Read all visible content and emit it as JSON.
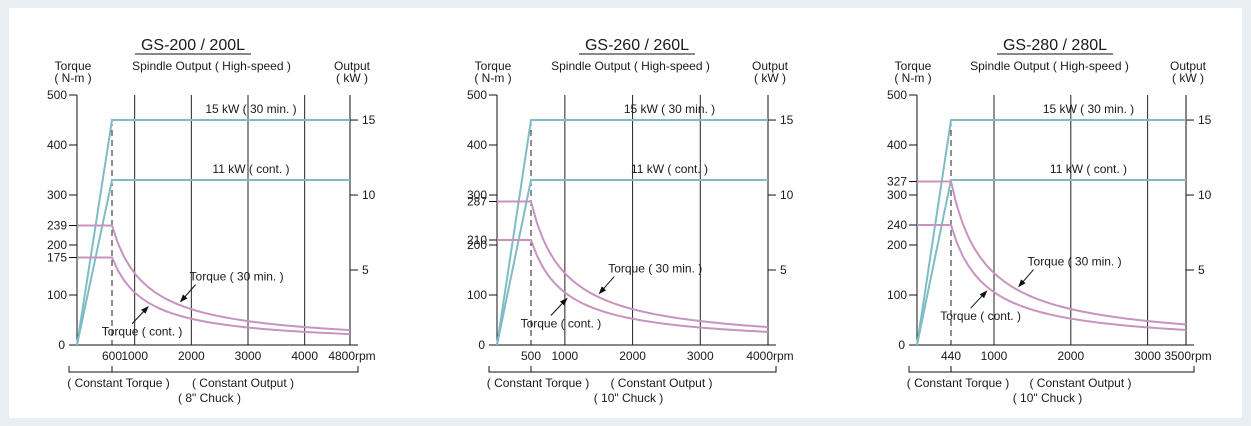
{
  "chart_data": [
    {
      "type": "line",
      "title": "GS-200 / 200L",
      "subtitle": "Spindle Output ( High-speed )",
      "left_axis": {
        "title_line1": "Torque",
        "title_line2": "( N-m )",
        "min": 0,
        "max": 500,
        "ticks": [
          0,
          100,
          200,
          300,
          400,
          500
        ]
      },
      "right_axis": {
        "title_line1": "Output",
        "title_line2": "( kW )",
        "min": 0,
        "max": 16.67,
        "ticks": [
          5,
          10,
          15
        ]
      },
      "x_axis": {
        "min": 0,
        "max": 4800,
        "ticks": [
          600,
          1000,
          2000,
          3000,
          4000
        ],
        "end_label": "4800rpm",
        "unit": "rpm"
      },
      "grid_x": [
        600,
        1000,
        2000,
        3000,
        4000,
        4800
      ],
      "base_speed": 600,
      "max_speed": 4800,
      "power_series": [
        {
          "label": "15 kW ( 30 min. )",
          "kw": 15
        },
        {
          "label": "11 kW ( cont. )",
          "kw": 11
        }
      ],
      "torque_series": [
        {
          "label": "Torque ( 30 min. )",
          "const_torque": 239
        },
        {
          "label": "Torque ( cont. )",
          "const_torque": 175
        }
      ],
      "torque_marks": [
        239,
        175
      ],
      "bracket_left": "( Constant Torque )",
      "bracket_right": "( Constant Output )",
      "chuck": "( 8\" Chuck )",
      "colors": {
        "power": "#7fbcc6",
        "torque": "#c893bf",
        "grid": "#222222"
      }
    },
    {
      "type": "line",
      "title": "GS-260 / 260L",
      "subtitle": "Spindle Output ( High-speed )",
      "left_axis": {
        "title_line1": "Torque",
        "title_line2": "( N-m )",
        "min": 0,
        "max": 500,
        "ticks": [
          0,
          100,
          200,
          300,
          400,
          500
        ]
      },
      "right_axis": {
        "title_line1": "Output",
        "title_line2": "( kW )",
        "min": 0,
        "max": 16.67,
        "ticks": [
          5,
          10,
          15
        ]
      },
      "x_axis": {
        "min": 0,
        "max": 4000,
        "ticks": [
          500,
          1000,
          2000,
          3000
        ],
        "end_label": "4000rpm",
        "unit": "rpm"
      },
      "grid_x": [
        500,
        1000,
        2000,
        3000,
        4000
      ],
      "base_speed": 500,
      "max_speed": 4000,
      "power_series": [
        {
          "label": "15 kW ( 30 min. )",
          "kw": 15
        },
        {
          "label": "11 kW ( cont. )",
          "kw": 11
        }
      ],
      "torque_series": [
        {
          "label": "Torque ( 30 min. )",
          "const_torque": 287
        },
        {
          "label": "Torque ( cont. )",
          "const_torque": 210
        }
      ],
      "torque_marks": [
        287,
        210
      ],
      "bracket_left": "( Constant Torque )",
      "bracket_right": "( Constant Output )",
      "chuck": "( 10\" Chuck )",
      "colors": {
        "power": "#7fbcc6",
        "torque": "#c893bf",
        "grid": "#222222"
      }
    },
    {
      "type": "line",
      "title": "GS-280 / 280L",
      "subtitle": "Spindle Output ( High-speed )",
      "left_axis": {
        "title_line1": "Torque",
        "title_line2": "( N-m )",
        "min": 0,
        "max": 500,
        "ticks": [
          0,
          100,
          200,
          300,
          400,
          500
        ]
      },
      "right_axis": {
        "title_line1": "Output",
        "title_line2": "( kW )",
        "min": 0,
        "max": 16.67,
        "ticks": [
          5,
          10,
          15
        ]
      },
      "x_axis": {
        "min": 0,
        "max": 3500,
        "ticks": [
          440,
          1000,
          2000,
          3000
        ],
        "end_label": "3500rpm",
        "unit": "rpm"
      },
      "grid_x": [
        440,
        1000,
        2000,
        3000,
        3500
      ],
      "base_speed": 440,
      "max_speed": 3500,
      "power_series": [
        {
          "label": "15 kW ( 30 min. )",
          "kw": 15
        },
        {
          "label": "11 kW ( cont. )",
          "kw": 11
        }
      ],
      "torque_series": [
        {
          "label": "Torque ( 30 min. )",
          "const_torque": 327
        },
        {
          "label": "Torque ( cont. )",
          "const_torque": 240
        }
      ],
      "torque_marks": [
        327,
        240
      ],
      "bracket_left": "( Constant Torque )",
      "bracket_right": "( Constant Output )",
      "chuck": "( 10\" Chuck )",
      "colors": {
        "power": "#7fbcc6",
        "torque": "#c893bf",
        "grid": "#222222"
      }
    }
  ]
}
